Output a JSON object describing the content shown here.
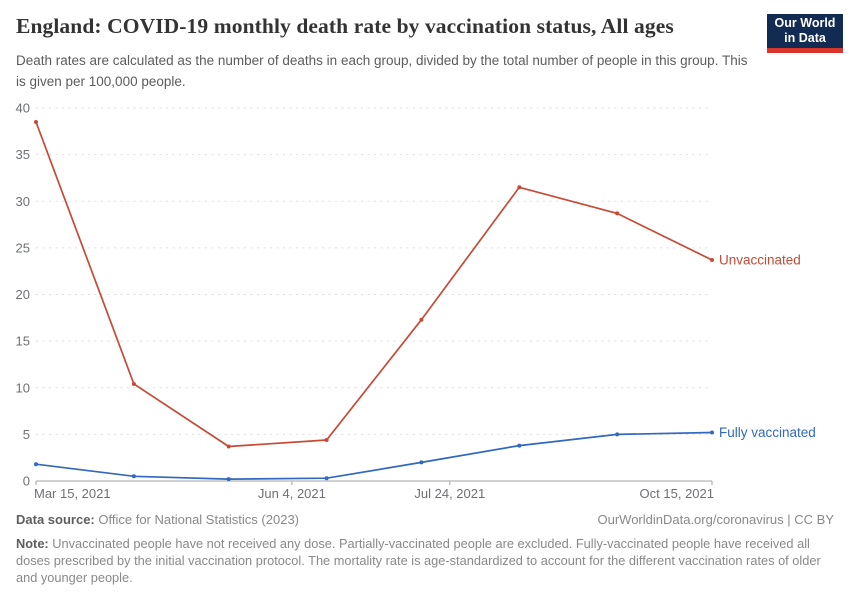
{
  "header": {
    "logo": {
      "line1": "Our World",
      "line2": "in Data",
      "bg_color": "#122b52",
      "stripe_color": "#d8352c"
    }
  },
  "chart_data": {
    "type": "line",
    "title": "England: COVID-19 monthly death rate by vaccination status, All ages",
    "subtitle": "Death rates are calculated as the number of deaths in each group, divided by the total number of people in this group. This is given per 100,000 people.",
    "x_days": [
      0,
      31,
      61,
      92,
      122,
      153,
      184,
      214
    ],
    "xlim_days": [
      0,
      214
    ],
    "ylim": [
      0,
      40
    ],
    "y_ticks": [
      0,
      5,
      10,
      15,
      20,
      25,
      30,
      35,
      40
    ],
    "x_ticks": [
      {
        "day": 0,
        "label": "Mar 15, 2021",
        "align": "start"
      },
      {
        "day": 81,
        "label": "Jun 4, 2021",
        "align": "middle"
      },
      {
        "day": 131,
        "label": "Jul 24, 2021",
        "align": "middle"
      },
      {
        "day": 214,
        "label": "Oct 15, 2021",
        "align": "end"
      }
    ],
    "series": [
      {
        "name": "Unvaccinated",
        "color": "#c74a35",
        "values": [
          38.5,
          10.4,
          3.7,
          4.4,
          17.3,
          31.5,
          28.7,
          23.7
        ]
      },
      {
        "name": "Fully vaccinated",
        "color": "#3268bf",
        "values": [
          1.8,
          0.5,
          0.2,
          0.3,
          2.0,
          3.8,
          5.0,
          5.2
        ]
      }
    ],
    "grid": "horizontal-dashed",
    "legend_position": "line-end-labels-right"
  },
  "footer": {
    "data_source_label": "Data source:",
    "data_source_value": "Office for National Statistics (2023)",
    "attribution": "OurWorldinData.org/coronavirus | CC BY",
    "note_label": "Note:",
    "note_text": "Unvaccinated people have not received any dose. Partially-vaccinated people are excluded. Fully-vaccinated people have received all doses prescribed by the initial vaccination protocol. The mortality rate is age-standardized to account for the different vaccination rates of older and younger people."
  }
}
